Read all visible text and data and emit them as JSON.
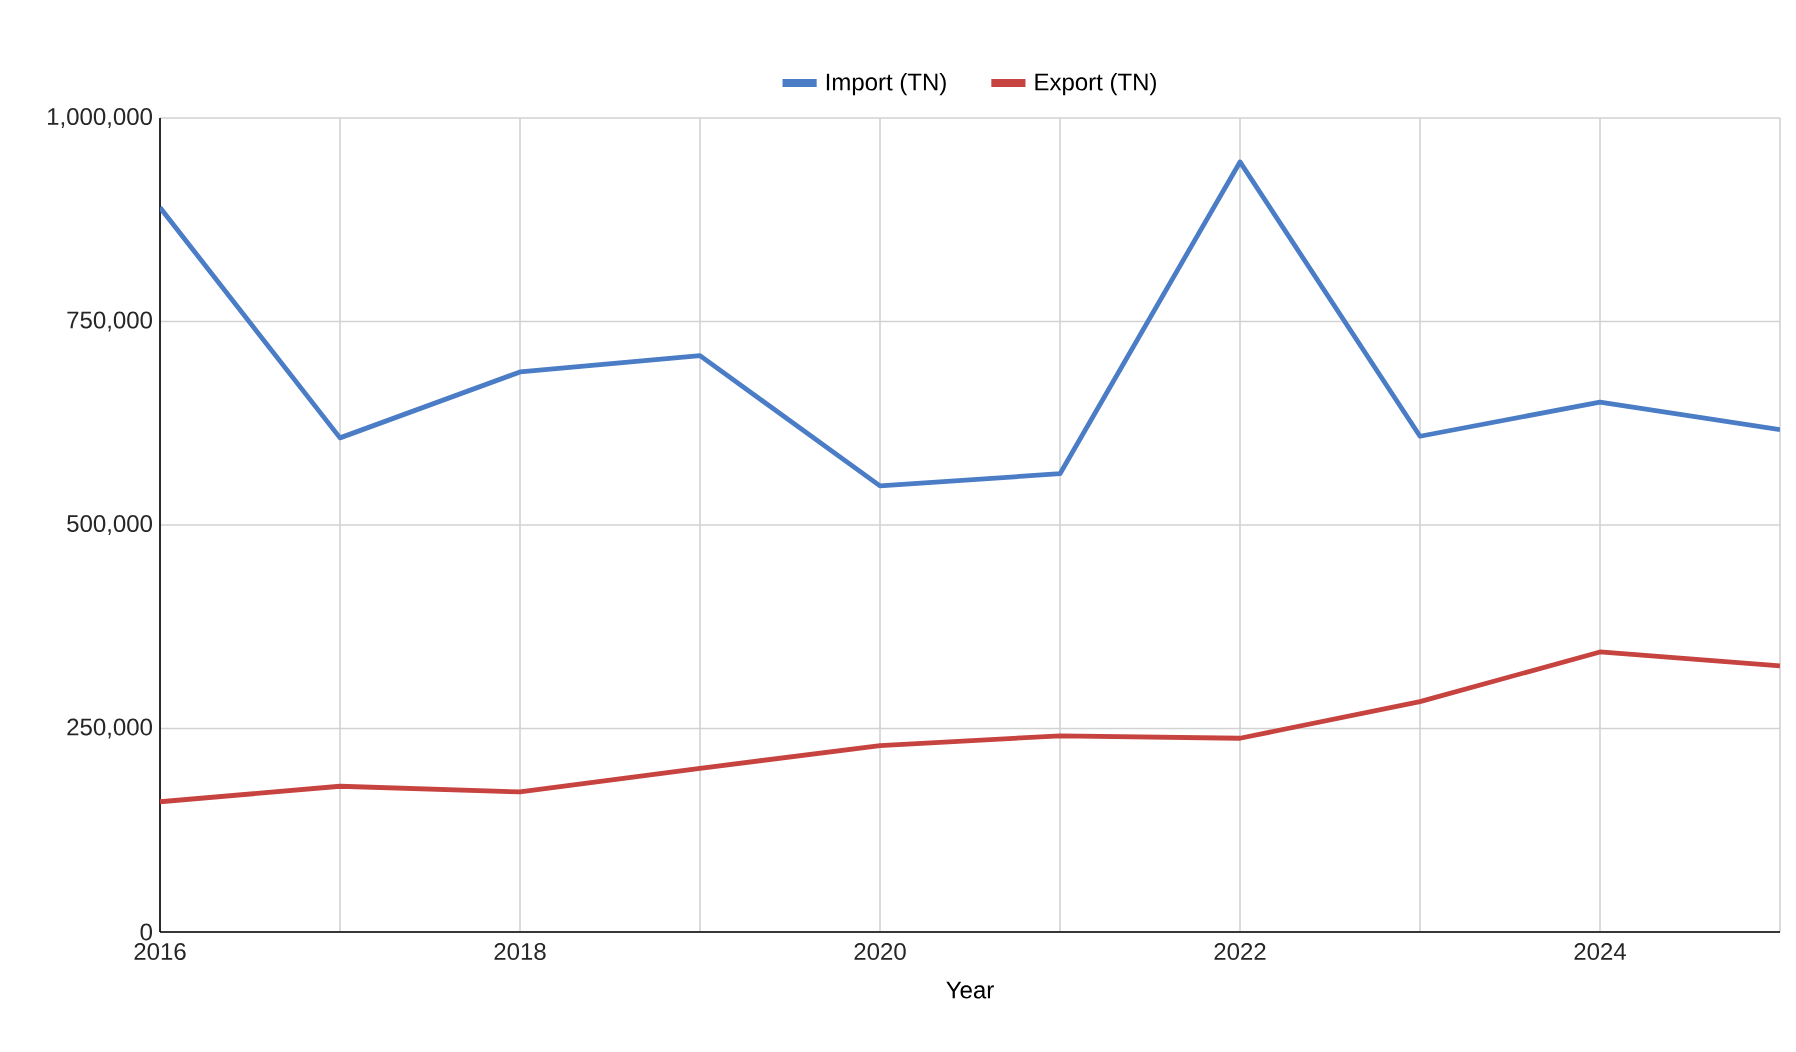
{
  "chart_data": {
    "type": "line",
    "xlabel": "Year",
    "x": [
      2016,
      2017,
      2018,
      2019,
      2020,
      2021,
      2022,
      2023,
      2024,
      2025
    ],
    "series": [
      {
        "name": "Import (TN)",
        "color": "#4a7dc6",
        "values": [
          890000,
          607000,
          688000,
          708000,
          548000,
          563000,
          946000,
          609000,
          651000,
          617000
        ]
      },
      {
        "name": "Export (TN)",
        "color": "#c6433f",
        "values": [
          160000,
          179000,
          172000,
          201000,
          229000,
          241000,
          238000,
          283000,
          344000,
          327000
        ]
      }
    ],
    "xlim": [
      2016,
      2025
    ],
    "xticks": [
      2016,
      {
        "value": 2017,
        "label": null
      },
      2018,
      {
        "value": 2019,
        "label": null
      },
      2020,
      {
        "value": 2021,
        "label": null
      },
      2022,
      {
        "value": 2023,
        "label": null
      },
      2024,
      {
        "value": 2025,
        "label": null
      }
    ],
    "ylim": [
      0,
      1000000
    ],
    "yticks": [
      {
        "value": 0,
        "label": "0"
      },
      {
        "value": 250000,
        "label": "250,000"
      },
      {
        "value": 500000,
        "label": "500,000"
      },
      {
        "value": 750000,
        "label": "750,000"
      },
      {
        "value": 1000000,
        "label": "1,000,000"
      }
    ],
    "grid": true,
    "legend": "top",
    "marker": "none",
    "line_style": "solid"
  }
}
